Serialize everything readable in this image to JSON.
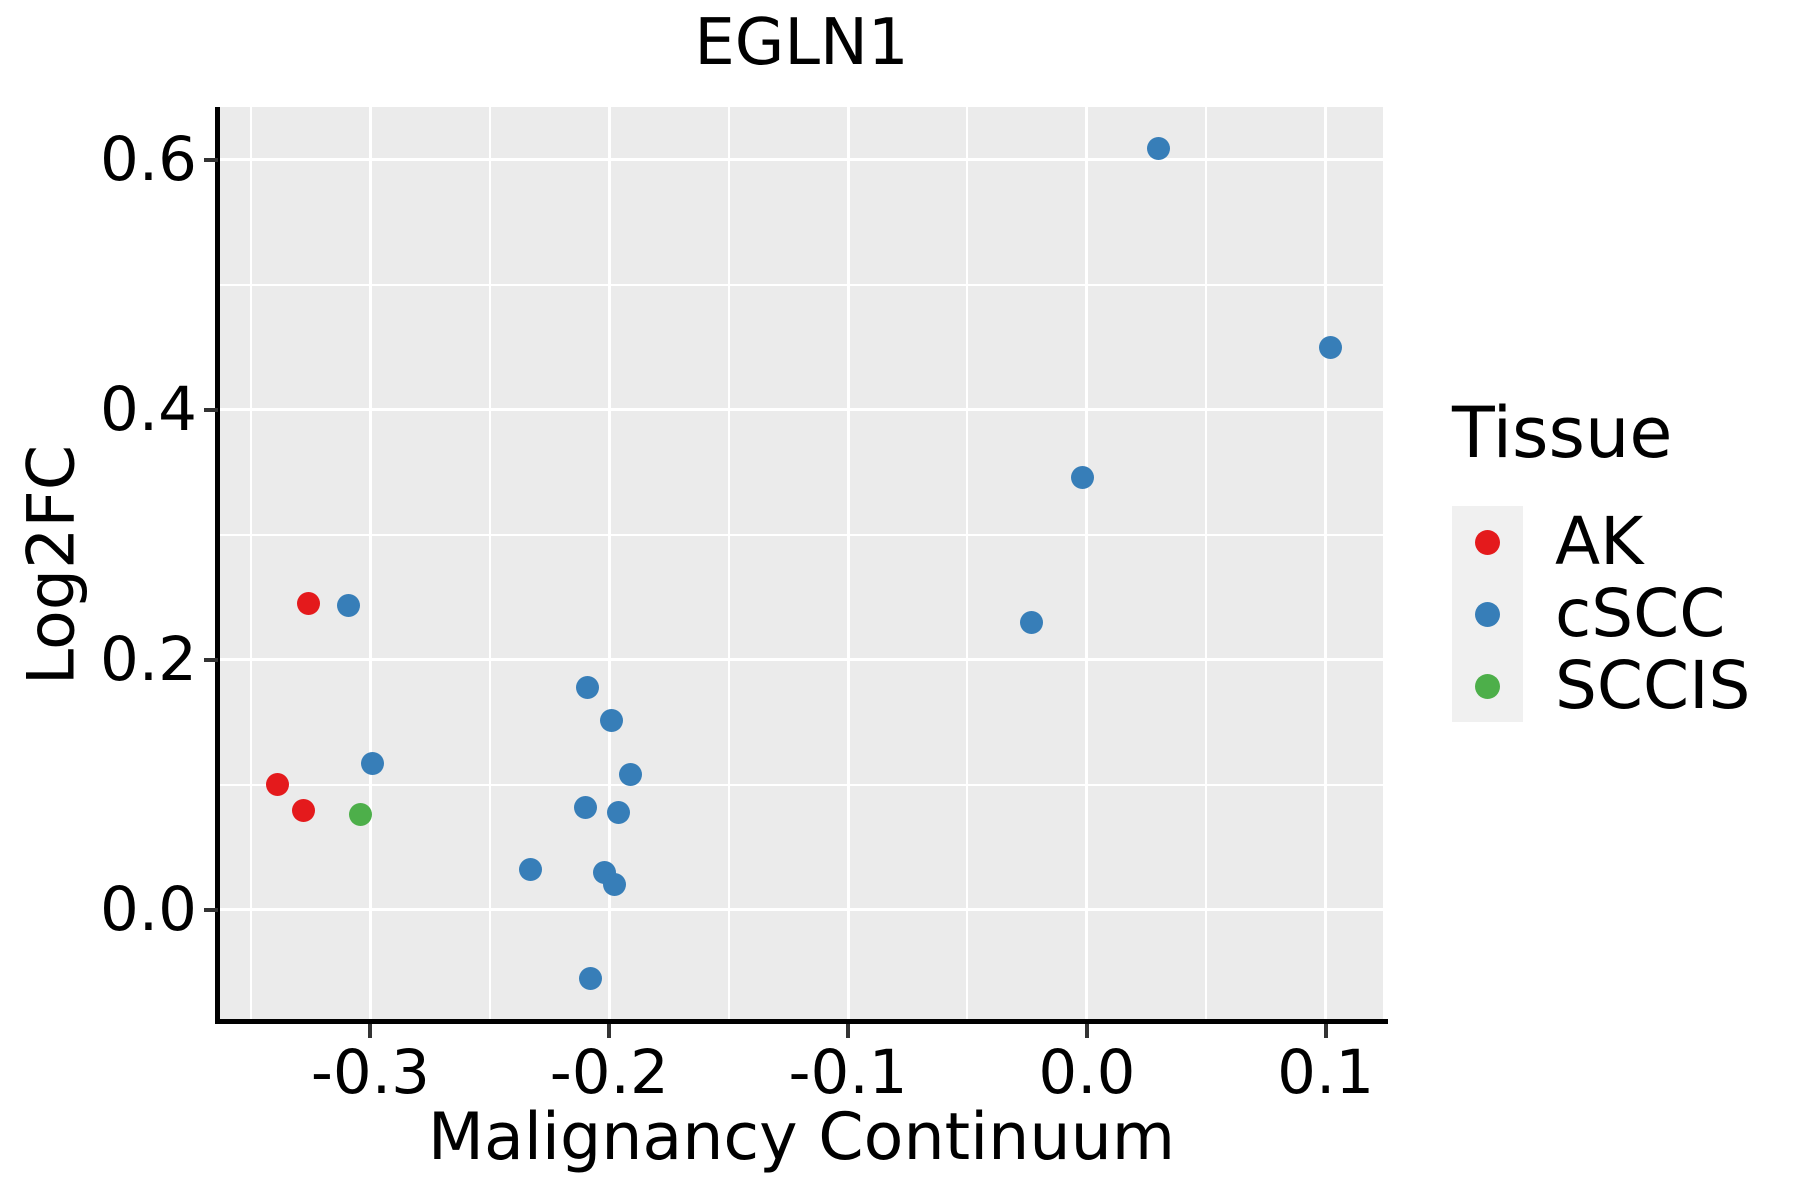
{
  "chart_data": {
    "type": "scatter",
    "title": "EGLN1",
    "xlabel": "Malignancy Continuum",
    "ylabel": "Log2FC",
    "xlim": [
      -0.363,
      0.124
    ],
    "ylim": [
      -0.09,
      0.642
    ],
    "grid": true,
    "panel_bg": "#EBEBEB",
    "grid_color": "#FFFFFF",
    "axis_color": "#000000",
    "tick_color": "#333333",
    "x_ticks": {
      "values": [
        -0.3,
        -0.2,
        -0.1,
        0.0,
        0.1
      ],
      "labels": [
        "-0.3",
        "-0.2",
        "-0.1",
        "0.0",
        "0.1"
      ],
      "minor": [
        -0.35,
        -0.25,
        -0.15,
        -0.05,
        0.05
      ]
    },
    "y_ticks": {
      "values": [
        0.0,
        0.2,
        0.4,
        0.6
      ],
      "labels": [
        "0.0",
        "0.2",
        "0.4",
        "0.6"
      ],
      "minor": [
        0.1,
        0.3,
        0.5
      ]
    },
    "legend": {
      "title": "Tissue",
      "position": "right",
      "key_bg": "#F0F0F0",
      "entries": [
        {
          "label": "AK",
          "color": "#E41A1C"
        },
        {
          "label": "cSCC",
          "color": "#377EB8"
        },
        {
          "label": "SCCIS",
          "color": "#4DAF4A"
        }
      ]
    },
    "series": [
      {
        "name": "cSCC",
        "color": "#377EB8",
        "points": [
          [
            -0.309,
            0.243
          ],
          [
            -0.299,
            0.117
          ],
          [
            -0.209,
            0.178
          ],
          [
            -0.199,
            0.151
          ],
          [
            -0.191,
            0.108
          ],
          [
            -0.21,
            0.082
          ],
          [
            -0.196,
            0.078
          ],
          [
            -0.233,
            0.032
          ],
          [
            -0.202,
            0.03
          ],
          [
            -0.198,
            0.02
          ],
          [
            -0.208,
            -0.055
          ],
          [
            -0.023,
            0.23
          ],
          [
            -0.002,
            0.346
          ],
          [
            0.03,
            0.609
          ],
          [
            0.102,
            0.45
          ]
        ]
      },
      {
        "name": "AK",
        "color": "#E41A1C",
        "points": [
          [
            -0.326,
            0.245
          ],
          [
            -0.339,
            0.1
          ],
          [
            -0.328,
            0.079
          ]
        ]
      },
      {
        "name": "SCCIS",
        "color": "#4DAF4A",
        "points": [
          [
            -0.304,
            0.076
          ]
        ]
      }
    ]
  }
}
